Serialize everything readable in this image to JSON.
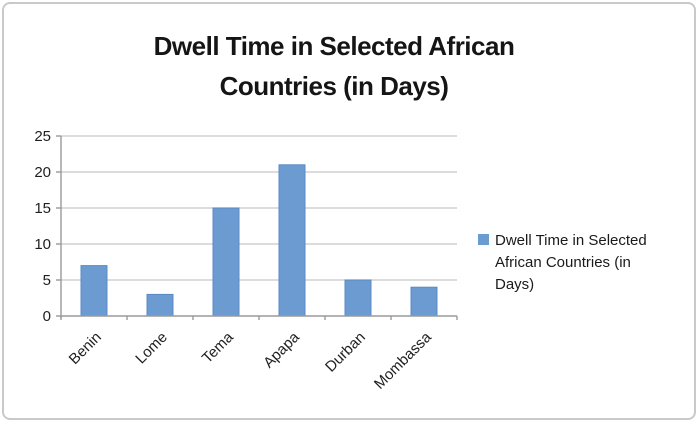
{
  "chart_data": {
    "type": "bar",
    "title": "Dwell Time in Selected African Countries (in Days)",
    "title_lines": [
      "Dwell Time in Selected African",
      "Countries (in Days)"
    ],
    "categories": [
      "Benin",
      "Lome",
      "Tema",
      "Apapa",
      "Durban",
      "Mombassa"
    ],
    "values": [
      7,
      3,
      15,
      21,
      5,
      4
    ],
    "series_name": "Dwell Time in Selected African Countries (in Days)",
    "xlabel": "",
    "ylabel": "",
    "ylim": [
      0,
      25
    ],
    "yticks": [
      0,
      5,
      10,
      15,
      20,
      25
    ],
    "grid": true,
    "legend_position": "right",
    "bar_color": "#6c9bd2",
    "bar_border_color": "#5b8ac5",
    "gridline_color": "#c6c6c6",
    "axis_color": "#9a9a9a",
    "tick_label_color": "#1f1f1f"
  }
}
